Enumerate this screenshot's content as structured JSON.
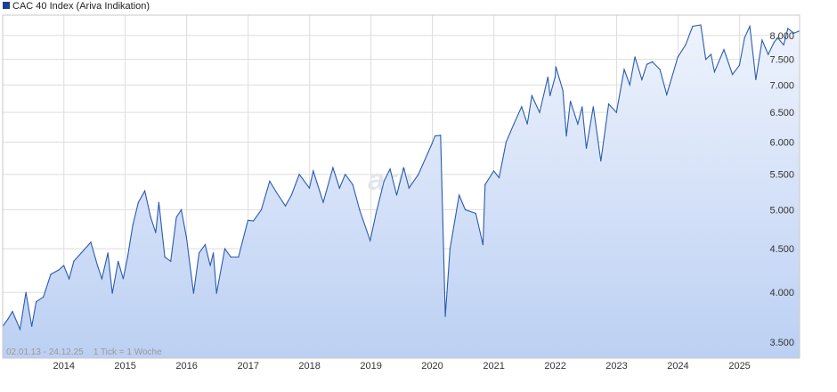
{
  "chart_data": {
    "type": "area",
    "legend": {
      "label": "CAC 40 Index (Ariva Indikation)",
      "placement": "top-left",
      "swatch_color": "#1f3f8f"
    },
    "subtitle": "02.01.13 - 24.12.25    1 Tick = 1 Woche",
    "watermark": "ariva",
    "y_axis": {
      "side": "right",
      "scale": "log",
      "range": [
        3350,
        8450
      ],
      "ticks": [
        {
          "value": 3500,
          "label": "3.500"
        },
        {
          "value": 4000,
          "label": "4.000"
        },
        {
          "value": 4500,
          "label": "4.500"
        },
        {
          "value": 5000,
          "label": "5.000"
        },
        {
          "value": 5500,
          "label": "5.500"
        },
        {
          "value": 6000,
          "label": "6.000"
        },
        {
          "value": 6500,
          "label": "6.500"
        },
        {
          "value": 7000,
          "label": "7.000"
        },
        {
          "value": 7500,
          "label": "7.500"
        },
        {
          "value": 8000,
          "label": "8.000"
        }
      ]
    },
    "x_axis": {
      "range": [
        "2013-01-02",
        "2025-12-24"
      ],
      "ticks": [
        {
          "value": "2014-01-01",
          "label": "2014"
        },
        {
          "value": "2015-01-01",
          "label": "2015"
        },
        {
          "value": "2016-01-01",
          "label": "2016"
        },
        {
          "value": "2017-01-01",
          "label": "2017"
        },
        {
          "value": "2018-01-01",
          "label": "2018"
        },
        {
          "value": "2019-01-01",
          "label": "2019"
        },
        {
          "value": "2020-01-01",
          "label": "2020"
        },
        {
          "value": "2021-01-01",
          "label": "2021"
        },
        {
          "value": "2022-01-01",
          "label": "2022"
        },
        {
          "value": "2023-01-01",
          "label": "2023"
        },
        {
          "value": "2024-01-01",
          "label": "2024"
        },
        {
          "value": "2025-01-01",
          "label": "2025"
        }
      ]
    },
    "grid": true,
    "colors": {
      "line": "#2a5bb0",
      "fill_top": "#eef3fd",
      "fill_bottom": "#bcd0f3",
      "grid": "#dddddd",
      "axis_text": "#333333",
      "subtitle_text": "#999999"
    },
    "series": [
      {
        "name": "CAC 40 Index (Ariva Indikation)",
        "points": [
          [
            "2013-01-02",
            3650
          ],
          [
            "2013-02-01",
            3720
          ],
          [
            "2013-03-01",
            3800
          ],
          [
            "2013-04-15",
            3620
          ],
          [
            "2013-05-20",
            4000
          ],
          [
            "2013-06-24",
            3650
          ],
          [
            "2013-07-20",
            3900
          ],
          [
            "2013-09-01",
            3950
          ],
          [
            "2013-10-15",
            4200
          ],
          [
            "2013-12-01",
            4250
          ],
          [
            "2013-12-31",
            4300
          ],
          [
            "2014-02-01",
            4150
          ],
          [
            "2014-03-01",
            4350
          ],
          [
            "2014-04-15",
            4450
          ],
          [
            "2014-06-10",
            4580
          ],
          [
            "2014-07-20",
            4300
          ],
          [
            "2014-08-15",
            4150
          ],
          [
            "2014-09-20",
            4450
          ],
          [
            "2014-10-16",
            3990
          ],
          [
            "2014-11-20",
            4350
          ],
          [
            "2014-12-20",
            4150
          ],
          [
            "2015-01-15",
            4400
          ],
          [
            "2015-02-15",
            4800
          ],
          [
            "2015-03-20",
            5100
          ],
          [
            "2015-04-27",
            5260
          ],
          [
            "2015-06-01",
            4900
          ],
          [
            "2015-07-01",
            4700
          ],
          [
            "2015-07-20",
            5100
          ],
          [
            "2015-08-24",
            4400
          ],
          [
            "2015-09-28",
            4350
          ],
          [
            "2015-11-01",
            4900
          ],
          [
            "2015-11-30",
            5000
          ],
          [
            "2015-12-31",
            4640
          ],
          [
            "2016-02-11",
            3990
          ],
          [
            "2016-03-15",
            4450
          ],
          [
            "2016-04-20",
            4550
          ],
          [
            "2016-05-20",
            4300
          ],
          [
            "2016-06-08",
            4450
          ],
          [
            "2016-06-27",
            3990
          ],
          [
            "2016-08-15",
            4500
          ],
          [
            "2016-09-20",
            4400
          ],
          [
            "2016-11-04",
            4400
          ],
          [
            "2016-12-31",
            4860
          ],
          [
            "2017-02-01",
            4850
          ],
          [
            "2017-03-20",
            5000
          ],
          [
            "2017-05-09",
            5400
          ],
          [
            "2017-06-15",
            5250
          ],
          [
            "2017-08-10",
            5050
          ],
          [
            "2017-09-15",
            5200
          ],
          [
            "2017-11-01",
            5500
          ],
          [
            "2017-12-31",
            5300
          ],
          [
            "2018-01-23",
            5550
          ],
          [
            "2018-03-23",
            5100
          ],
          [
            "2018-05-20",
            5600
          ],
          [
            "2018-06-28",
            5300
          ],
          [
            "2018-08-01",
            5500
          ],
          [
            "2018-09-15",
            5350
          ],
          [
            "2018-10-25",
            5000
          ],
          [
            "2018-12-27",
            4600
          ],
          [
            "2019-01-31",
            4950
          ],
          [
            "2019-03-20",
            5400
          ],
          [
            "2019-04-25",
            5580
          ],
          [
            "2019-06-03",
            5200
          ],
          [
            "2019-07-15",
            5600
          ],
          [
            "2019-08-15",
            5300
          ],
          [
            "2019-10-10",
            5500
          ],
          [
            "2019-12-31",
            5980
          ],
          [
            "2020-01-17",
            6100
          ],
          [
            "2020-02-19",
            6110
          ],
          [
            "2020-03-18",
            3750
          ],
          [
            "2020-04-15",
            4500
          ],
          [
            "2020-06-08",
            5200
          ],
          [
            "2020-07-15",
            5000
          ],
          [
            "2020-09-15",
            4950
          ],
          [
            "2020-10-28",
            4550
          ],
          [
            "2020-11-10",
            5350
          ],
          [
            "2020-12-31",
            5550
          ],
          [
            "2021-02-01",
            5450
          ],
          [
            "2021-03-15",
            6000
          ],
          [
            "2021-04-30",
            6300
          ],
          [
            "2021-06-15",
            6600
          ],
          [
            "2021-07-19",
            6300
          ],
          [
            "2021-08-15",
            6800
          ],
          [
            "2021-09-30",
            6500
          ],
          [
            "2021-11-18",
            7150
          ],
          [
            "2021-12-01",
            6800
          ],
          [
            "2021-12-31",
            7150
          ],
          [
            "2022-01-05",
            7350
          ],
          [
            "2022-02-15",
            6900
          ],
          [
            "2022-03-08",
            6100
          ],
          [
            "2022-04-01",
            6700
          ],
          [
            "2022-05-15",
            6300
          ],
          [
            "2022-06-10",
            6600
          ],
          [
            "2022-07-05",
            5900
          ],
          [
            "2022-08-15",
            6600
          ],
          [
            "2022-09-29",
            5700
          ],
          [
            "2022-11-15",
            6650
          ],
          [
            "2022-12-31",
            6500
          ],
          [
            "2023-02-15",
            7300
          ],
          [
            "2023-03-20",
            7000
          ],
          [
            "2023-04-20",
            7550
          ],
          [
            "2023-05-31",
            7100
          ],
          [
            "2023-06-30",
            7400
          ],
          [
            "2023-08-01",
            7450
          ],
          [
            "2023-09-15",
            7300
          ],
          [
            "2023-10-26",
            6820
          ],
          [
            "2023-12-31",
            7550
          ],
          [
            "2024-02-15",
            7800
          ],
          [
            "2024-03-28",
            8200
          ],
          [
            "2024-05-15",
            8230
          ],
          [
            "2024-06-14",
            7500
          ],
          [
            "2024-07-15",
            7600
          ],
          [
            "2024-08-05",
            7250
          ],
          [
            "2024-09-30",
            7700
          ],
          [
            "2024-11-20",
            7200
          ],
          [
            "2024-12-31",
            7380
          ],
          [
            "2025-01-31",
            7950
          ],
          [
            "2025-03-03",
            8200
          ],
          [
            "2025-04-08",
            7100
          ],
          [
            "2025-05-15",
            7900
          ],
          [
            "2025-06-20",
            7600
          ],
          [
            "2025-07-25",
            7850
          ],
          [
            "2025-08-15",
            7950
          ],
          [
            "2025-09-20",
            7800
          ],
          [
            "2025-10-15",
            8150
          ],
          [
            "2025-11-20",
            8050
          ],
          [
            "2025-12-24",
            8100
          ]
        ]
      }
    ]
  }
}
